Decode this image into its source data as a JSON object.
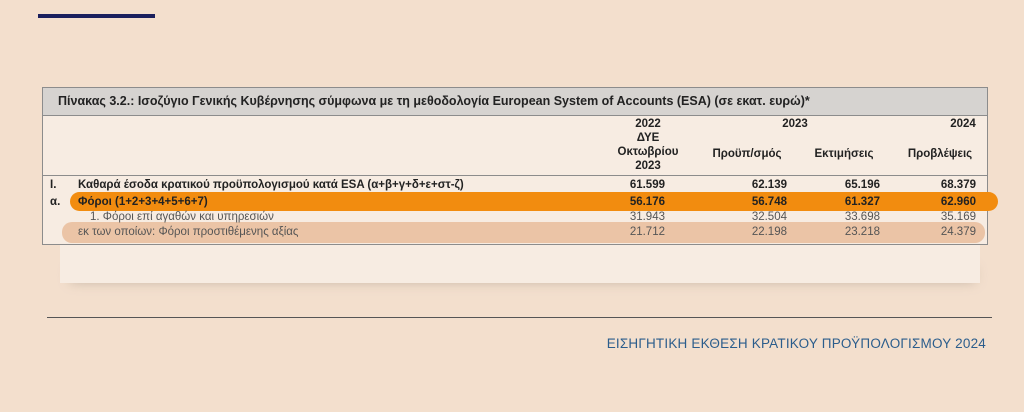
{
  "table": {
    "title": "Πίνακας 3.2.: Ισοζύγιο Γενικής Κυβέρνησης σύμφωνα με τη μεθοδολογία European System of Accounts (ESA) (σε εκατ. ευρώ)*",
    "years": [
      "2022",
      "2023",
      "2024"
    ],
    "subheaders": [
      "ΔΥΕ Οκτωβρίου 2023",
      "Προϋπ/σμός",
      "Εκτιμήσεις",
      "Προβλέψεις"
    ],
    "rows": [
      [
        "I.",
        "Καθαρά έσοδα κρατικού προϋπολογισμού κατά ESA (α+β+γ+δ+ε+στ-ζ)",
        "61.599",
        "62.139",
        "65.196",
        "68.379"
      ],
      [
        "α.",
        "Φόροι (1+2+3+4+5+6+7)",
        "56.176",
        "56.748",
        "61.327",
        "62.960"
      ],
      [
        null,
        "1. Φόροι επί αγαθών και υπηρεσιών",
        "31.943",
        "32.504",
        "33.698",
        "35.169"
      ],
      [
        null,
        "εκ των οποίων:  Φόροι προστιθέμενης αξίας",
        "21.712",
        "22.198",
        "23.218",
        "24.379"
      ]
    ]
  },
  "footer": "ΕΙΣΗΓΗΤΙΚΗ ΕΚΘΕΣΗ ΚΡΑΤΙΚΟΥ ΠΡΟΫΠΟΛΟΓΙΣΜΟΥ 2024"
}
